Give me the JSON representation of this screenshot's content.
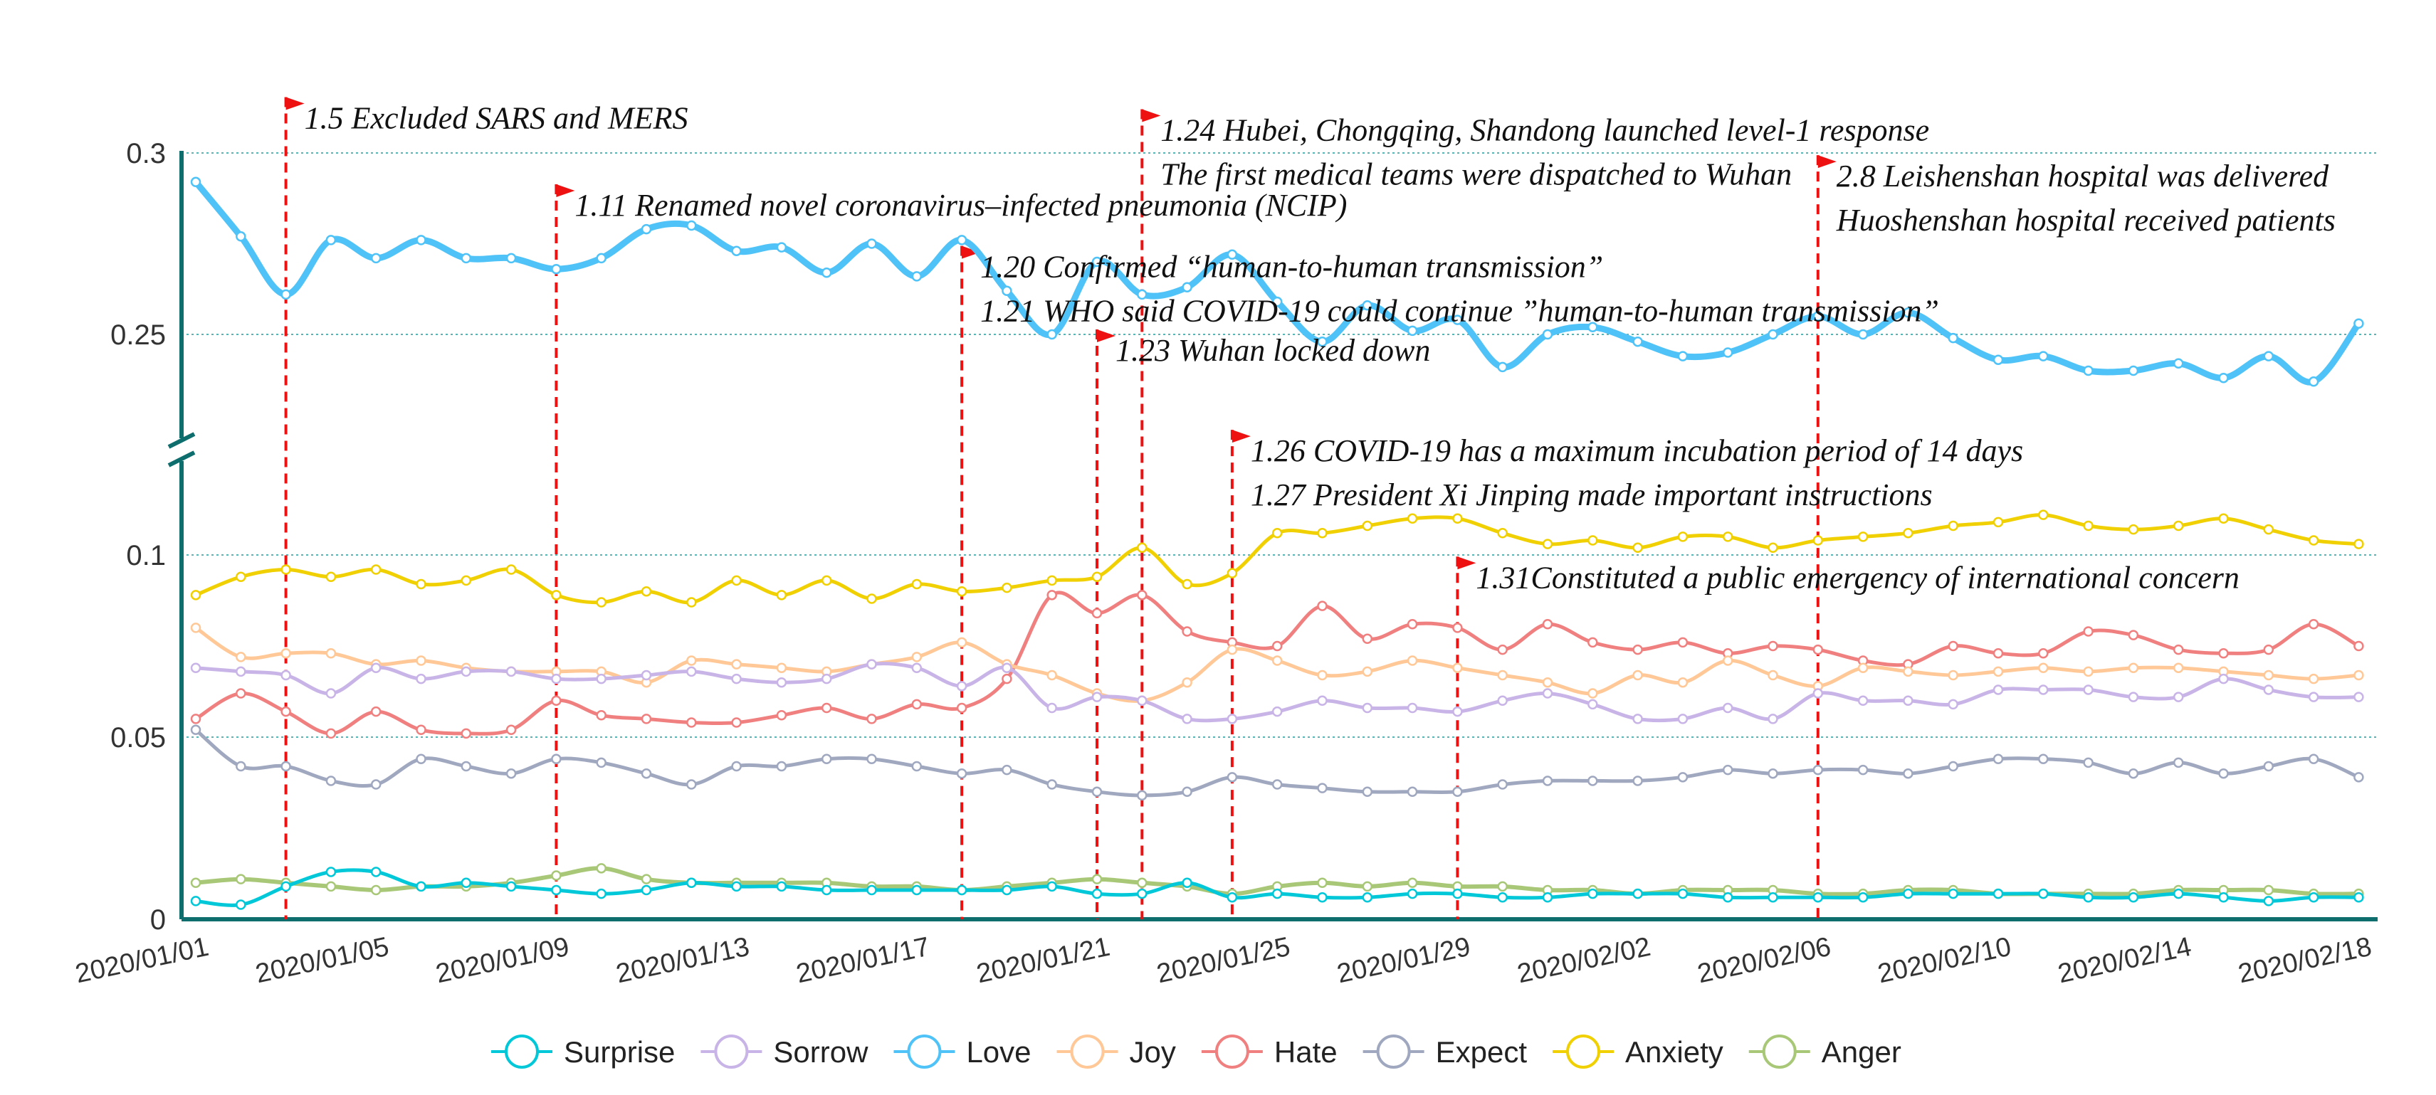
{
  "chart_data": {
    "type": "line",
    "title": "",
    "xlabel": "",
    "ylabel": "",
    "grid": true,
    "legend_position": "bottom",
    "x_range": [
      "2020/01/01",
      "2020/02/19"
    ],
    "x_tick_labels": [
      "2020/01/01",
      "2020/01/05",
      "2020/01/09",
      "2020/01/13",
      "2020/01/17",
      "2020/01/21",
      "2020/01/25",
      "2020/01/29",
      "2020/02/02",
      "2020/02/06",
      "2020/02/10",
      "2020/02/14",
      "2020/02/18"
    ],
    "y_axis_break": {
      "lower_range": [
        0,
        0.12
      ],
      "upper_range": [
        0.23,
        0.3
      ]
    },
    "y_tick_labels": [
      "0",
      "0.05",
      "0.1",
      "0.25",
      "0.3"
    ],
    "y_tick_values": [
      0,
      0.05,
      0.1,
      0.25,
      0.3
    ],
    "x": [
      0,
      1,
      2,
      3,
      4,
      5,
      6,
      7,
      8,
      9,
      10,
      11,
      12,
      13,
      14,
      15,
      16,
      17,
      18,
      19,
      20,
      21,
      22,
      23,
      24,
      25,
      26,
      27,
      28,
      29,
      30,
      31,
      32,
      33,
      34,
      35,
      36,
      37,
      38,
      39,
      40,
      41,
      42,
      43,
      44,
      45,
      46,
      47,
      48
    ],
    "series": [
      {
        "name": "Love",
        "color": "#4fc3f7",
        "stroke_width": 9,
        "values": [
          0.292,
          0.277,
          0.261,
          0.276,
          0.271,
          0.276,
          0.271,
          0.271,
          0.268,
          0.271,
          0.279,
          0.28,
          0.273,
          0.274,
          0.267,
          0.275,
          0.266,
          0.276,
          0.262,
          0.25,
          0.27,
          0.261,
          0.263,
          0.272,
          0.259,
          0.248,
          0.258,
          0.251,
          0.254,
          0.241,
          0.25,
          0.252,
          0.248,
          0.244,
          0.245,
          0.25,
          0.255,
          0.25,
          0.256,
          0.249,
          0.243,
          0.244,
          0.24,
          0.24,
          0.242,
          0.238,
          0.244,
          0.237,
          0.253
        ]
      },
      {
        "name": "Anxiety",
        "color": "#f0d000",
        "stroke_width": 5,
        "values": [
          0.089,
          0.094,
          0.096,
          0.094,
          0.096,
          0.092,
          0.093,
          0.096,
          0.089,
          0.087,
          0.09,
          0.087,
          0.093,
          0.089,
          0.093,
          0.088,
          0.092,
          0.09,
          0.091,
          0.093,
          0.094,
          0.102,
          0.092,
          0.095,
          0.106,
          0.106,
          0.108,
          0.11,
          0.11,
          0.106,
          0.103,
          0.104,
          0.102,
          0.105,
          0.105,
          0.102,
          0.104,
          0.105,
          0.106,
          0.108,
          0.109,
          0.111,
          0.108,
          0.107,
          0.108,
          0.11,
          0.107,
          0.104,
          0.103
        ]
      },
      {
        "name": "Hate",
        "color": "#f08080",
        "stroke_width": 5,
        "values": [
          0.055,
          0.062,
          0.057,
          0.051,
          0.057,
          0.052,
          0.051,
          0.052,
          0.06,
          0.056,
          0.055,
          0.054,
          0.054,
          0.056,
          0.058,
          0.055,
          0.059,
          0.058,
          0.066,
          0.089,
          0.084,
          0.089,
          0.079,
          0.076,
          0.075,
          0.086,
          0.077,
          0.081,
          0.08,
          0.074,
          0.081,
          0.076,
          0.074,
          0.076,
          0.073,
          0.075,
          0.074,
          0.071,
          0.07,
          0.075,
          0.073,
          0.073,
          0.079,
          0.078,
          0.074,
          0.073,
          0.074,
          0.081,
          0.075
        ]
      },
      {
        "name": "Joy",
        "color": "#ffc896",
        "stroke_width": 5,
        "values": [
          0.08,
          0.072,
          0.073,
          0.073,
          0.07,
          0.071,
          0.069,
          0.068,
          0.068,
          0.068,
          0.065,
          0.071,
          0.07,
          0.069,
          0.068,
          0.07,
          0.072,
          0.076,
          0.07,
          0.067,
          0.062,
          0.06,
          0.065,
          0.074,
          0.071,
          0.067,
          0.068,
          0.071,
          0.069,
          0.067,
          0.065,
          0.062,
          0.067,
          0.065,
          0.071,
          0.067,
          0.064,
          0.069,
          0.068,
          0.067,
          0.068,
          0.069,
          0.068,
          0.069,
          0.069,
          0.068,
          0.067,
          0.066,
          0.067
        ]
      },
      {
        "name": "Sorrow",
        "color": "#c8b4e6",
        "stroke_width": 5,
        "values": [
          0.069,
          0.068,
          0.067,
          0.062,
          0.069,
          0.066,
          0.068,
          0.068,
          0.066,
          0.066,
          0.067,
          0.068,
          0.066,
          0.065,
          0.066,
          0.07,
          0.069,
          0.064,
          0.069,
          0.058,
          0.061,
          0.06,
          0.055,
          0.055,
          0.057,
          0.06,
          0.058,
          0.058,
          0.057,
          0.06,
          0.062,
          0.059,
          0.055,
          0.055,
          0.058,
          0.055,
          0.062,
          0.06,
          0.06,
          0.059,
          0.063,
          0.063,
          0.063,
          0.061,
          0.061,
          0.066,
          0.063,
          0.061,
          0.061
        ]
      },
      {
        "name": "Expect",
        "color": "#a0a8c0",
        "stroke_width": 5,
        "values": [
          0.052,
          0.042,
          0.042,
          0.038,
          0.037,
          0.044,
          0.042,
          0.04,
          0.044,
          0.043,
          0.04,
          0.037,
          0.042,
          0.042,
          0.044,
          0.044,
          0.042,
          0.04,
          0.041,
          0.037,
          0.035,
          0.034,
          0.035,
          0.039,
          0.037,
          0.036,
          0.035,
          0.035,
          0.035,
          0.037,
          0.038,
          0.038,
          0.038,
          0.039,
          0.041,
          0.04,
          0.041,
          0.041,
          0.04,
          0.042,
          0.044,
          0.044,
          0.043,
          0.04,
          0.043,
          0.04,
          0.042,
          0.044,
          0.039
        ]
      },
      {
        "name": "Anger",
        "color": "#a8c878",
        "stroke_width": 6,
        "values": [
          0.01,
          0.011,
          0.01,
          0.009,
          0.008,
          0.009,
          0.009,
          0.01,
          0.012,
          0.014,
          0.011,
          0.01,
          0.01,
          0.01,
          0.01,
          0.009,
          0.009,
          0.008,
          0.009,
          0.01,
          0.011,
          0.01,
          0.009,
          0.007,
          0.009,
          0.01,
          0.009,
          0.01,
          0.009,
          0.009,
          0.008,
          0.008,
          0.007,
          0.008,
          0.008,
          0.008,
          0.007,
          0.007,
          0.008,
          0.008,
          0.007,
          0.007,
          0.007,
          0.007,
          0.008,
          0.008,
          0.008,
          0.007,
          0.007
        ]
      },
      {
        "name": "Surprise",
        "color": "#00c8d8",
        "stroke_width": 5,
        "values": [
          0.005,
          0.004,
          0.009,
          0.013,
          0.013,
          0.009,
          0.01,
          0.009,
          0.008,
          0.007,
          0.008,
          0.01,
          0.009,
          0.009,
          0.008,
          0.008,
          0.008,
          0.008,
          0.008,
          0.009,
          0.007,
          0.007,
          0.01,
          0.006,
          0.007,
          0.006,
          0.006,
          0.007,
          0.007,
          0.006,
          0.006,
          0.007,
          0.007,
          0.007,
          0.006,
          0.006,
          0.006,
          0.006,
          0.007,
          0.007,
          0.007,
          0.007,
          0.006,
          0.006,
          0.007,
          0.006,
          0.005,
          0.006,
          0.006
        ]
      }
    ],
    "legend_order": [
      "Surprise",
      "Sorrow",
      "Love",
      "Joy",
      "Hate",
      "Expect",
      "Anxiety",
      "Anger"
    ],
    "annotations": [
      {
        "x": 2,
        "label_y": 0.3095,
        "lines": [
          "1.5 Excluded SARS and MERS"
        ]
      },
      {
        "x": 8,
        "label_y": 0.2855,
        "lines": [
          "1.11 Renamed novel coronavirus–infected pneumonia (NCIP)"
        ]
      },
      {
        "x": 17,
        "label_y": 0.2685,
        "lines": [
          "1.20 Confirmed “human-to-human transmission”",
          "1.21 WHO said COVID-19 could continue ”human-to-human transmission”"
        ]
      },
      {
        "x": 20,
        "label_y": 0.2455,
        "lines": [
          "1.23 Wuhan locked down"
        ]
      },
      {
        "x": 21,
        "label_y": 0.2165,
        "lines": [
          "1.24 Hubei, Chongqing, Shandong launched level-1 response",
          "The first medical teams were dispatched to Wuhan"
        ]
      },
      {
        "x": 23,
        "label_y": 0.1285,
        "lines": [
          "1.26 COVID-19 has a maximum incubation period of 14 days",
          "1.27 President Xi Jinping made important instructions"
        ]
      },
      {
        "x": 28,
        "label_y": 0.0937,
        "lines": [
          "1.31Constituted a public emergency of international concern"
        ]
      },
      {
        "x": 36,
        "label_y": 0.2935,
        "lines": [
          "2.8 Leishenshan hospital was delivered",
          "Huoshenshan hospital received patients"
        ]
      }
    ]
  }
}
